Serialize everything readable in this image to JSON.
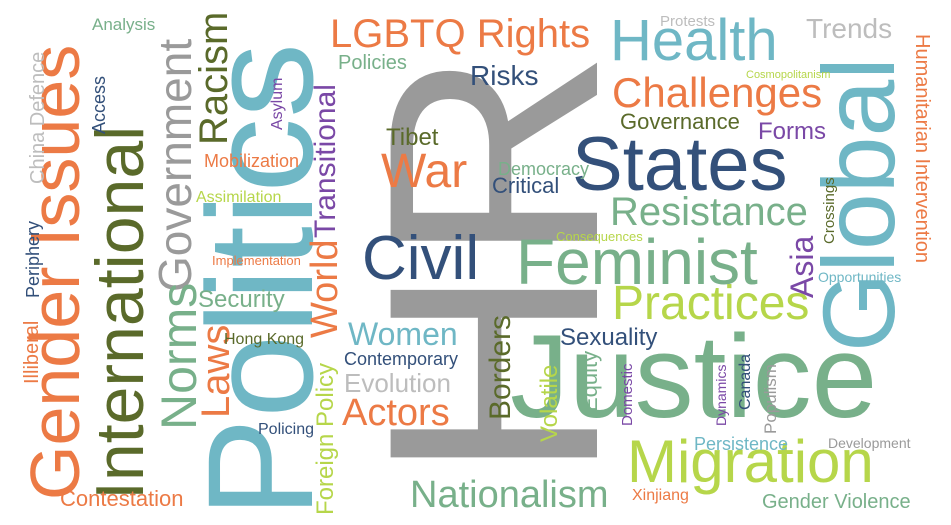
{
  "colors": {
    "gray": "#9a9a9a",
    "light_gray": "#bdbdbd",
    "teal": "#6fb7c5",
    "navy": "#33507a",
    "orange": "#ec7a45",
    "olive": "#5a6a2a",
    "green": "#78b08a",
    "lime": "#b6d64a",
    "purple": "#7a48a6"
  },
  "words": {
    "hr": "HR",
    "politics": "Politics",
    "justice": "Justice",
    "global": "Global",
    "states": "States",
    "feminist": "Feminist",
    "civil": "Civil",
    "migration": "Migration",
    "international": "International",
    "gender_issues": "Gender Issues",
    "government": "Government",
    "health": "Health",
    "lgbtq_rights": "LGBTQ Rights",
    "challenges": "Challenges",
    "resistance": "Resistance",
    "practices": "Practices",
    "nationalism": "Nationalism",
    "actors": "Actors",
    "war": "War",
    "norms": "Norms",
    "racism": "Racism",
    "laws": "Laws",
    "world": "World",
    "transitional": "Transitional",
    "foreign_policy": "Foreign Policy",
    "women": "Women",
    "evolution": "Evolution",
    "borders": "Borders",
    "volatile": "Volatile",
    "equity": "Equity",
    "sexuality": "Sexuality",
    "contestation": "Contestation",
    "trends": "Trends",
    "risks": "Risks",
    "governance": "Governance",
    "forms": "Forms",
    "tibet": "Tibet",
    "democracy": "Democracy",
    "critical": "Critical",
    "security": "Security",
    "hong_kong": "Hong Kong",
    "contemporary": "Contemporary",
    "policing": "Policing",
    "asia": "Asia",
    "canada": "Canada",
    "populism": "Populism",
    "persistence": "Persistence",
    "development": "Development",
    "gender_violence": "Gender Violence",
    "xinjiang": "Xinjiang",
    "humanitarian_intervention": "Humanitarian Intervention",
    "crossings": "Crossings",
    "opportunities": "Opportunities",
    "consequences": "Consequences",
    "cosmopolitanism": "Cosmopolitanism",
    "protests": "Protests",
    "analysis": "Analysis",
    "china_defence": "China Defence",
    "access": "Access",
    "asylum": "Asylum",
    "mobilization": "Mobilization",
    "assimilation": "Assimilation",
    "implementation": "Implementation",
    "periphery": "Periphery",
    "illiberal": "Illiberal",
    "policies": "Policies",
    "domestic": "Domestic",
    "dynamics": "Dynamics"
  }
}
